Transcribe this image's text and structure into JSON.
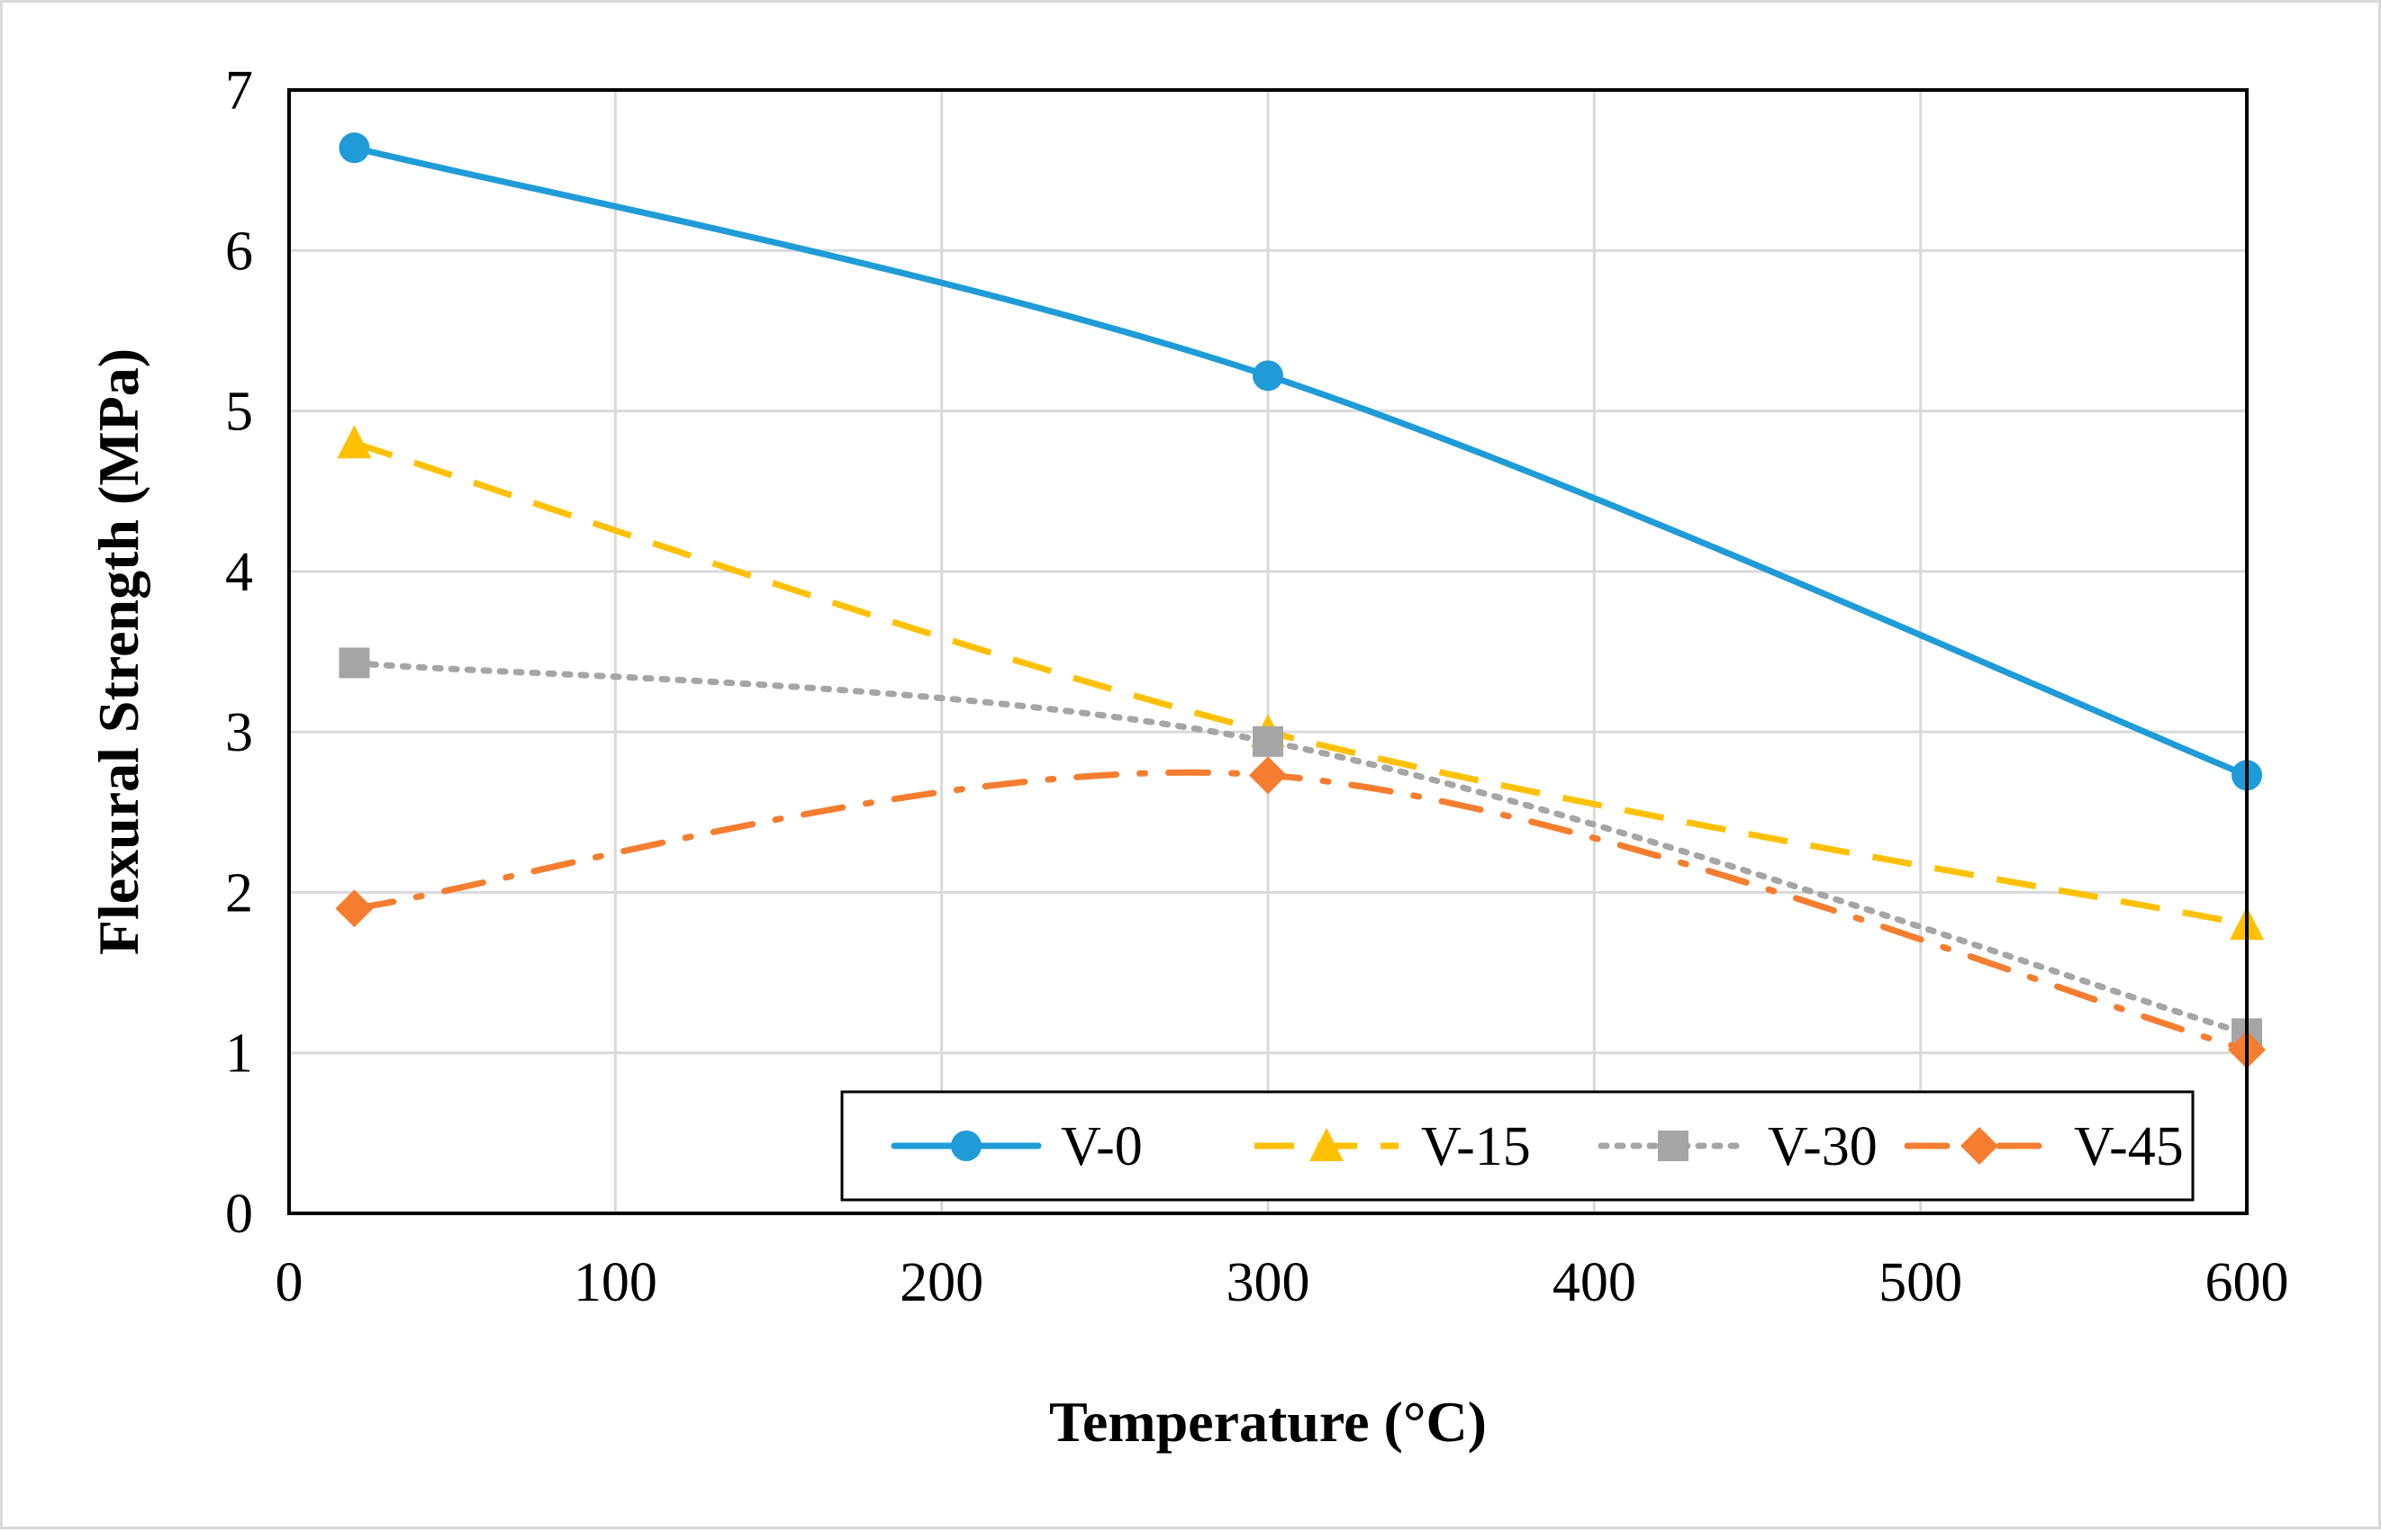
{
  "chart_data": {
    "type": "line",
    "title": "",
    "xlabel": "Temperature (°C)",
    "ylabel": "Flexural Strength (MPa)",
    "xlim": [
      0,
      600
    ],
    "ylim": [
      0,
      7
    ],
    "xticks": [
      "0",
      "100",
      "200",
      "300",
      "400",
      "500",
      "600"
    ],
    "yticks": [
      "0",
      "1",
      "2",
      "3",
      "4",
      "5",
      "6",
      "7"
    ],
    "grid": true,
    "legend_position": "bottom-right",
    "x": [
      20,
      300,
      600
    ],
    "series": [
      {
        "name": "V-0",
        "values": [
          6.64,
          5.22,
          2.73
        ],
        "color": "#1f9bd7",
        "marker": "circle",
        "dash": "solid"
      },
      {
        "name": "V-15",
        "values": [
          4.8,
          3.0,
          1.8
        ],
        "color": "#ffc000",
        "marker": "triangle",
        "dash": "dash"
      },
      {
        "name": "V-30",
        "values": [
          3.43,
          2.94,
          1.12
        ],
        "color": "#a5a5a5",
        "marker": "square",
        "dash": "dot"
      },
      {
        "name": "V-45",
        "values": [
          1.9,
          2.73,
          1.02
        ],
        "color": "#f47d30",
        "marker": "diamond",
        "dash": "dashdot"
      }
    ]
  }
}
